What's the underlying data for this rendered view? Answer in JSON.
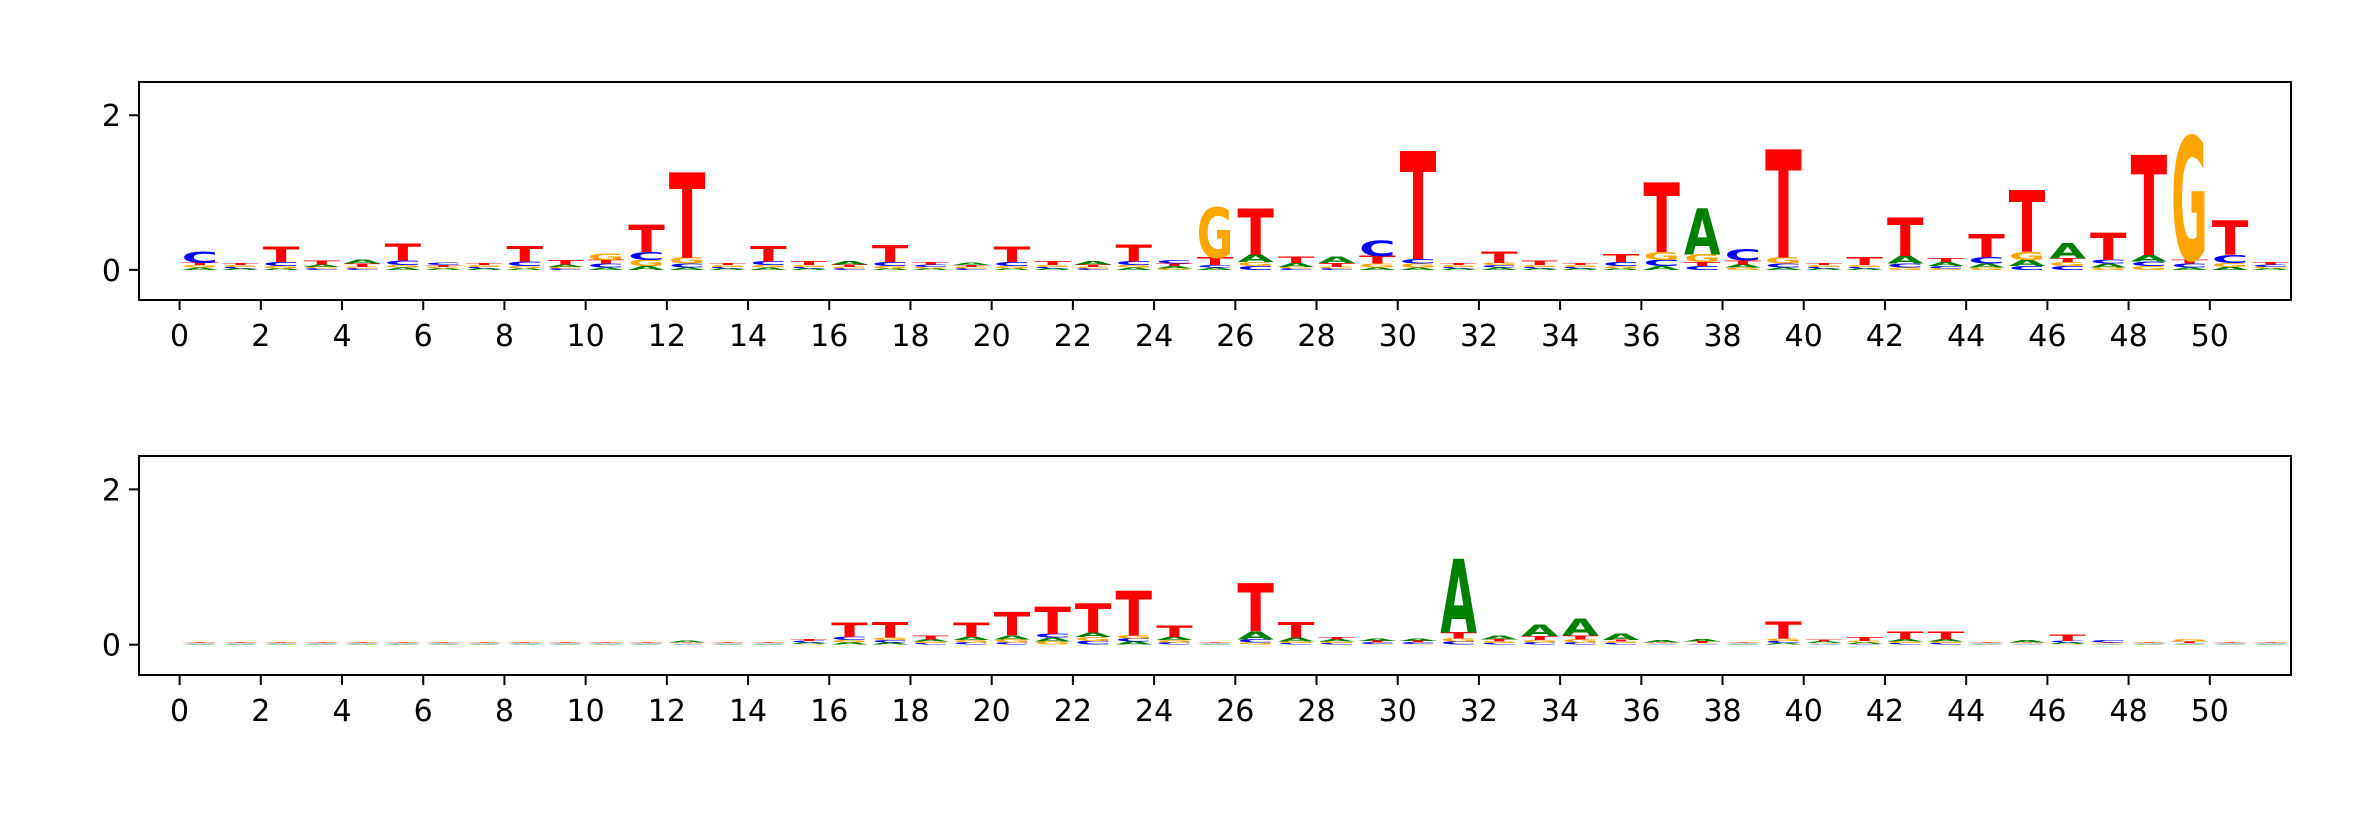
{
  "chart_data": [
    {
      "type": "logo",
      "xlim": [
        -1,
        52
      ],
      "ylim": [
        -0.39,
        2.43
      ],
      "xticks": [
        0,
        2,
        4,
        6,
        8,
        10,
        12,
        14,
        16,
        18,
        20,
        22,
        24,
        26,
        28,
        30,
        32,
        34,
        36,
        38,
        40,
        42,
        44,
        46,
        48,
        50
      ],
      "yticks": [
        0,
        2
      ],
      "series": [
        {
          "name": "A",
          "color": "#008000",
          "values": [
            0.03,
            0.02,
            0.02,
            0.03,
            0.05,
            0.03,
            0.02,
            0.02,
            0.02,
            0.03,
            0.03,
            0.05,
            0.03,
            0.02,
            0.03,
            0.02,
            0.04,
            0.02,
            0.02,
            0.03,
            0.02,
            0.02,
            0.04,
            0.03,
            0.03,
            0.03,
            0.1,
            0.05,
            0.08,
            0.03,
            0.03,
            0.02,
            0.03,
            0.02,
            0.02,
            0.02,
            0.05,
            0.6,
            0.04,
            0.03,
            0.02,
            0.02,
            0.1,
            0.05,
            0.05,
            0.08,
            0.2,
            0.05,
            0.08,
            0.03,
            0.04,
            0.02
          ]
        },
        {
          "name": "C",
          "color": "#0000ff",
          "values": [
            0.15,
            0.02,
            0.05,
            0.02,
            0.02,
            0.06,
            0.03,
            0.02,
            0.06,
            0.02,
            0.05,
            0.1,
            0.05,
            0.02,
            0.05,
            0.02,
            0.02,
            0.05,
            0.03,
            0.02,
            0.05,
            0.02,
            0.02,
            0.05,
            0.04,
            0.03,
            0.05,
            0.02,
            0.02,
            0.2,
            0.06,
            0.02,
            0.03,
            0.02,
            0.02,
            0.05,
            0.08,
            0.05,
            0.15,
            0.05,
            0.02,
            0.02,
            0.05,
            0.03,
            0.08,
            0.05,
            0.05,
            0.05,
            0.06,
            0.05,
            0.1,
            0.03
          ]
        },
        {
          "name": "G",
          "color": "#ffa500",
          "values": [
            0.03,
            0.02,
            0.03,
            0.02,
            0.02,
            0.03,
            0.02,
            0.02,
            0.03,
            0.02,
            0.08,
            0.08,
            0.08,
            0.02,
            0.03,
            0.02,
            0.02,
            0.03,
            0.02,
            0.02,
            0.03,
            0.02,
            0.02,
            0.03,
            0.02,
            0.65,
            0.05,
            0.02,
            0.02,
            0.05,
            0.05,
            0.02,
            0.03,
            0.02,
            0.02,
            0.03,
            0.1,
            0.1,
            0.03,
            0.08,
            0.02,
            0.02,
            0.03,
            0.02,
            0.03,
            0.1,
            0.05,
            0.03,
            0.05,
            1.6,
            0.05,
            0.02
          ]
        },
        {
          "name": "T",
          "color": "#ff0000",
          "values": [
            0.03,
            0.02,
            0.2,
            0.05,
            0.04,
            0.22,
            0.02,
            0.02,
            0.2,
            0.06,
            0.05,
            0.35,
            1.1,
            0.02,
            0.2,
            0.05,
            0.03,
            0.22,
            0.03,
            0.02,
            0.2,
            0.05,
            0.03,
            0.22,
            0.03,
            0.1,
            0.6,
            0.08,
            0.05,
            0.1,
            1.4,
            0.02,
            0.15,
            0.06,
            0.02,
            0.1,
            0.9,
            0.05,
            0.05,
            1.4,
            0.02,
            0.1,
            0.5,
            0.05,
            0.3,
            0.8,
            0.05,
            0.35,
            1.3,
            0.05,
            0.45,
            0.03
          ]
        }
      ]
    },
    {
      "type": "logo",
      "xlim": [
        -1,
        52
      ],
      "ylim": [
        -0.39,
        2.43
      ],
      "xticks": [
        0,
        2,
        4,
        6,
        8,
        10,
        12,
        14,
        16,
        18,
        20,
        22,
        24,
        26,
        28,
        30,
        32,
        34,
        36,
        38,
        40,
        42,
        44,
        46,
        48,
        50
      ],
      "yticks": [
        0,
        2
      ],
      "series": [
        {
          "name": "A",
          "color": "#008000",
          "values": [
            0.01,
            0.01,
            0.01,
            0.01,
            0.01,
            0.01,
            0.01,
            0.01,
            0.01,
            0.01,
            0.01,
            0.01,
            0.02,
            0.01,
            0.01,
            0.02,
            0.03,
            0.03,
            0.03,
            0.04,
            0.05,
            0.05,
            0.06,
            0.04,
            0.04,
            0.01,
            0.1,
            0.05,
            0.03,
            0.03,
            0.03,
            0.95,
            0.05,
            0.15,
            0.22,
            0.08,
            0.03,
            0.03,
            0.01,
            0.02,
            0.02,
            0.02,
            0.03,
            0.03,
            0.01,
            0.03,
            0.02,
            0.01,
            0.01,
            0.01,
            0.01,
            0.01
          ]
        },
        {
          "name": "C",
          "color": "#0000ff",
          "values": [
            0.01,
            0.01,
            0.01,
            0.01,
            0.01,
            0.01,
            0.01,
            0.01,
            0.01,
            0.01,
            0.01,
            0.01,
            0.01,
            0.01,
            0.01,
            0.02,
            0.04,
            0.03,
            0.02,
            0.03,
            0.03,
            0.05,
            0.05,
            0.04,
            0.03,
            0.01,
            0.04,
            0.02,
            0.02,
            0.02,
            0.02,
            0.04,
            0.02,
            0.03,
            0.03,
            0.02,
            0.01,
            0.01,
            0.01,
            0.03,
            0.01,
            0.01,
            0.02,
            0.02,
            0.01,
            0.01,
            0.02,
            0.03,
            0.01,
            0.01,
            0.01,
            0.01
          ]
        },
        {
          "name": "G",
          "color": "#ffa500",
          "values": [
            0.01,
            0.01,
            0.01,
            0.01,
            0.01,
            0.01,
            0.01,
            0.01,
            0.01,
            0.01,
            0.01,
            0.01,
            0.01,
            0.01,
            0.01,
            0.01,
            0.03,
            0.03,
            0.02,
            0.03,
            0.04,
            0.04,
            0.05,
            0.04,
            0.03,
            0.01,
            0.03,
            0.02,
            0.02,
            0.01,
            0.01,
            0.04,
            0.02,
            0.03,
            0.04,
            0.02,
            0.01,
            0.01,
            0.01,
            0.03,
            0.01,
            0.02,
            0.02,
            0.02,
            0.01,
            0.01,
            0.01,
            0.01,
            0.01,
            0.03,
            0.01,
            0.01
          ]
        },
        {
          "name": "T",
          "color": "#ff0000",
          "values": [
            0.01,
            0.01,
            0.01,
            0.01,
            0.01,
            0.01,
            0.01,
            0.01,
            0.01,
            0.01,
            0.01,
            0.01,
            0.01,
            0.01,
            0.01,
            0.02,
            0.18,
            0.2,
            0.05,
            0.18,
            0.3,
            0.35,
            0.38,
            0.58,
            0.15,
            0.01,
            0.62,
            0.2,
            0.03,
            0.02,
            0.02,
            0.08,
            0.03,
            0.05,
            0.05,
            0.02,
            0.01,
            0.02,
            0.01,
            0.22,
            0.02,
            0.05,
            0.1,
            0.1,
            0.01,
            0.01,
            0.08,
            0.01,
            0.01,
            0.02,
            0.01,
            0.01
          ]
        }
      ]
    }
  ]
}
